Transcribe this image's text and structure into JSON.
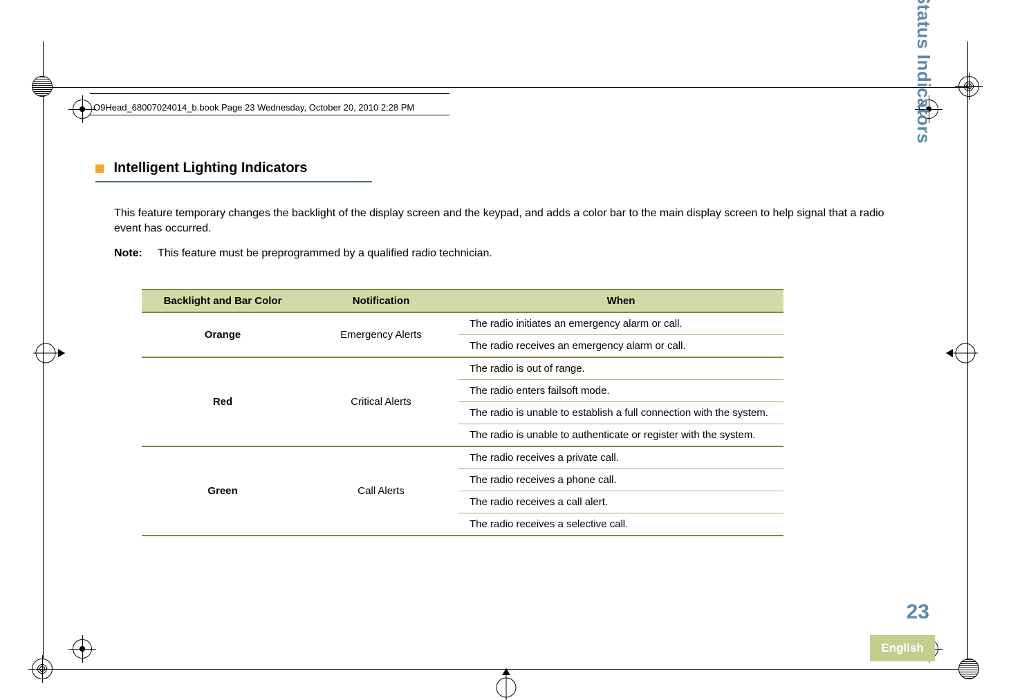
{
  "header": {
    "file_path": "O9Head_68007024014_b.book  Page 23  Wednesday, October 20, 2010  2:28 PM"
  },
  "section": {
    "title": "Intelligent Lighting Indicators"
  },
  "intro": "This feature temporary changes the backlight of the display screen and the keypad, and adds a color bar to the main display screen to help signal that a radio event has occurred.",
  "note_label": "Note:",
  "note_text": "This feature must be preprogrammed by a qualified radio technician.",
  "table": {
    "headers": {
      "color": "Backlight and Bar Color",
      "notif": "Notification",
      "when": "When"
    },
    "groups": [
      {
        "color": "Orange",
        "notif": "Emergency Alerts",
        "whens": [
          "The radio initiates an emergency alarm or call.",
          "The radio receives an emergency alarm or call."
        ]
      },
      {
        "color": "Red",
        "notif": "Critical Alerts",
        "whens": [
          "The radio is out of range.",
          "The radio enters failsoft mode.",
          "The radio is unable to establish a full connection with the system.",
          "The radio is unable to authenticate or register with the system."
        ]
      },
      {
        "color": "Green",
        "notif": "Call Alerts",
        "whens": [
          "The radio receives a private call.",
          "The radio receives a phone call.",
          "The radio receives a call alert.",
          "The radio receives a selective call."
        ]
      }
    ]
  },
  "sidebar": {
    "title": "Identifying Status Indicators",
    "page": "23",
    "language": "English"
  },
  "colors": {
    "accent_bullet": "#f5a623",
    "rule": "#4a6b7a",
    "table_header_bg": "#d1dba8",
    "table_border": "#7a8a3e",
    "sidebar_text": "#5d8aa8",
    "tab_bg": "#c3ce8e"
  }
}
